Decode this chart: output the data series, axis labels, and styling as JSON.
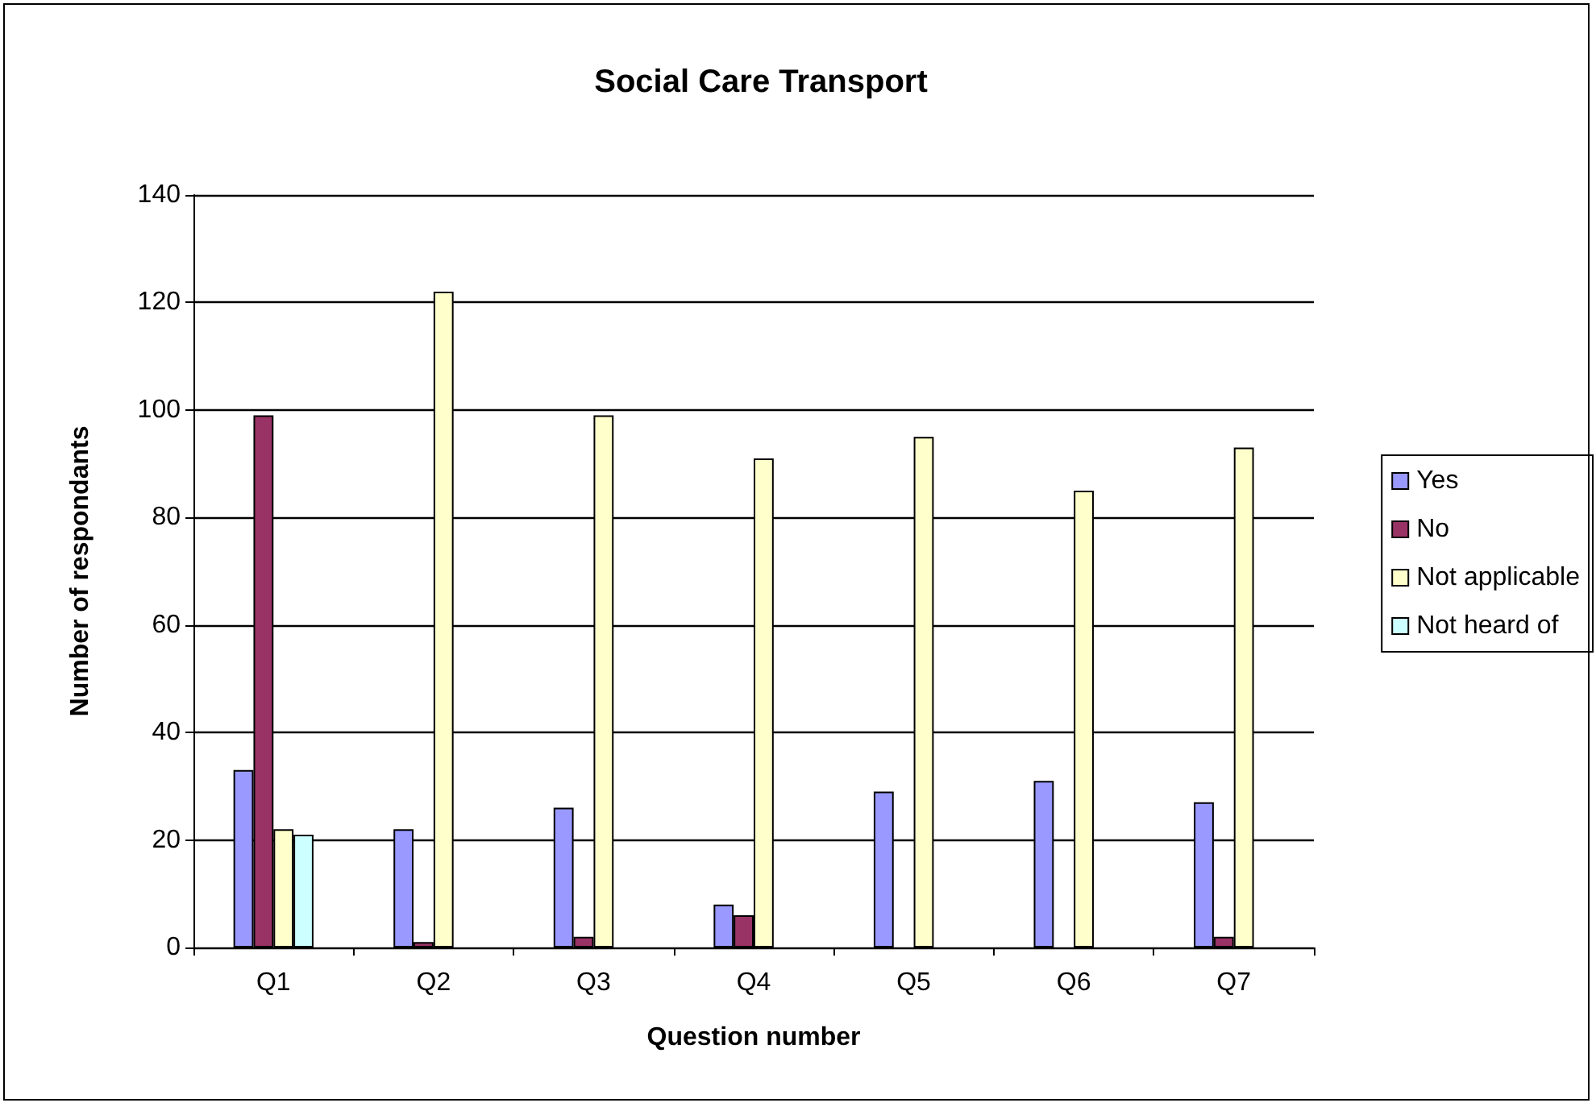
{
  "chart_data": {
    "type": "bar",
    "title": "Social Care Transport",
    "xlabel": "Question number",
    "ylabel": "Number of respondants",
    "categories": [
      "Q1",
      "Q2",
      "Q3",
      "Q4",
      "Q5",
      "Q6",
      "Q7"
    ],
    "series": [
      {
        "name": "Yes",
        "color": "#9999ff",
        "values": [
          33,
          22,
          26,
          8,
          29,
          31,
          27
        ]
      },
      {
        "name": "No",
        "color": "#993366",
        "values": [
          99,
          1,
          2,
          6,
          null,
          null,
          2
        ]
      },
      {
        "name": "Not applicable",
        "color": "#ffffcc",
        "values": [
          22,
          122,
          99,
          91,
          95,
          85,
          93
        ]
      },
      {
        "name": "Not heard of",
        "color": "#ccffff",
        "values": [
          21,
          null,
          null,
          null,
          null,
          null,
          null
        ]
      }
    ],
    "ylim": [
      0,
      140
    ],
    "yticks": [
      0,
      20,
      40,
      60,
      80,
      100,
      120,
      140
    ],
    "grid": "y",
    "legend": "right"
  }
}
